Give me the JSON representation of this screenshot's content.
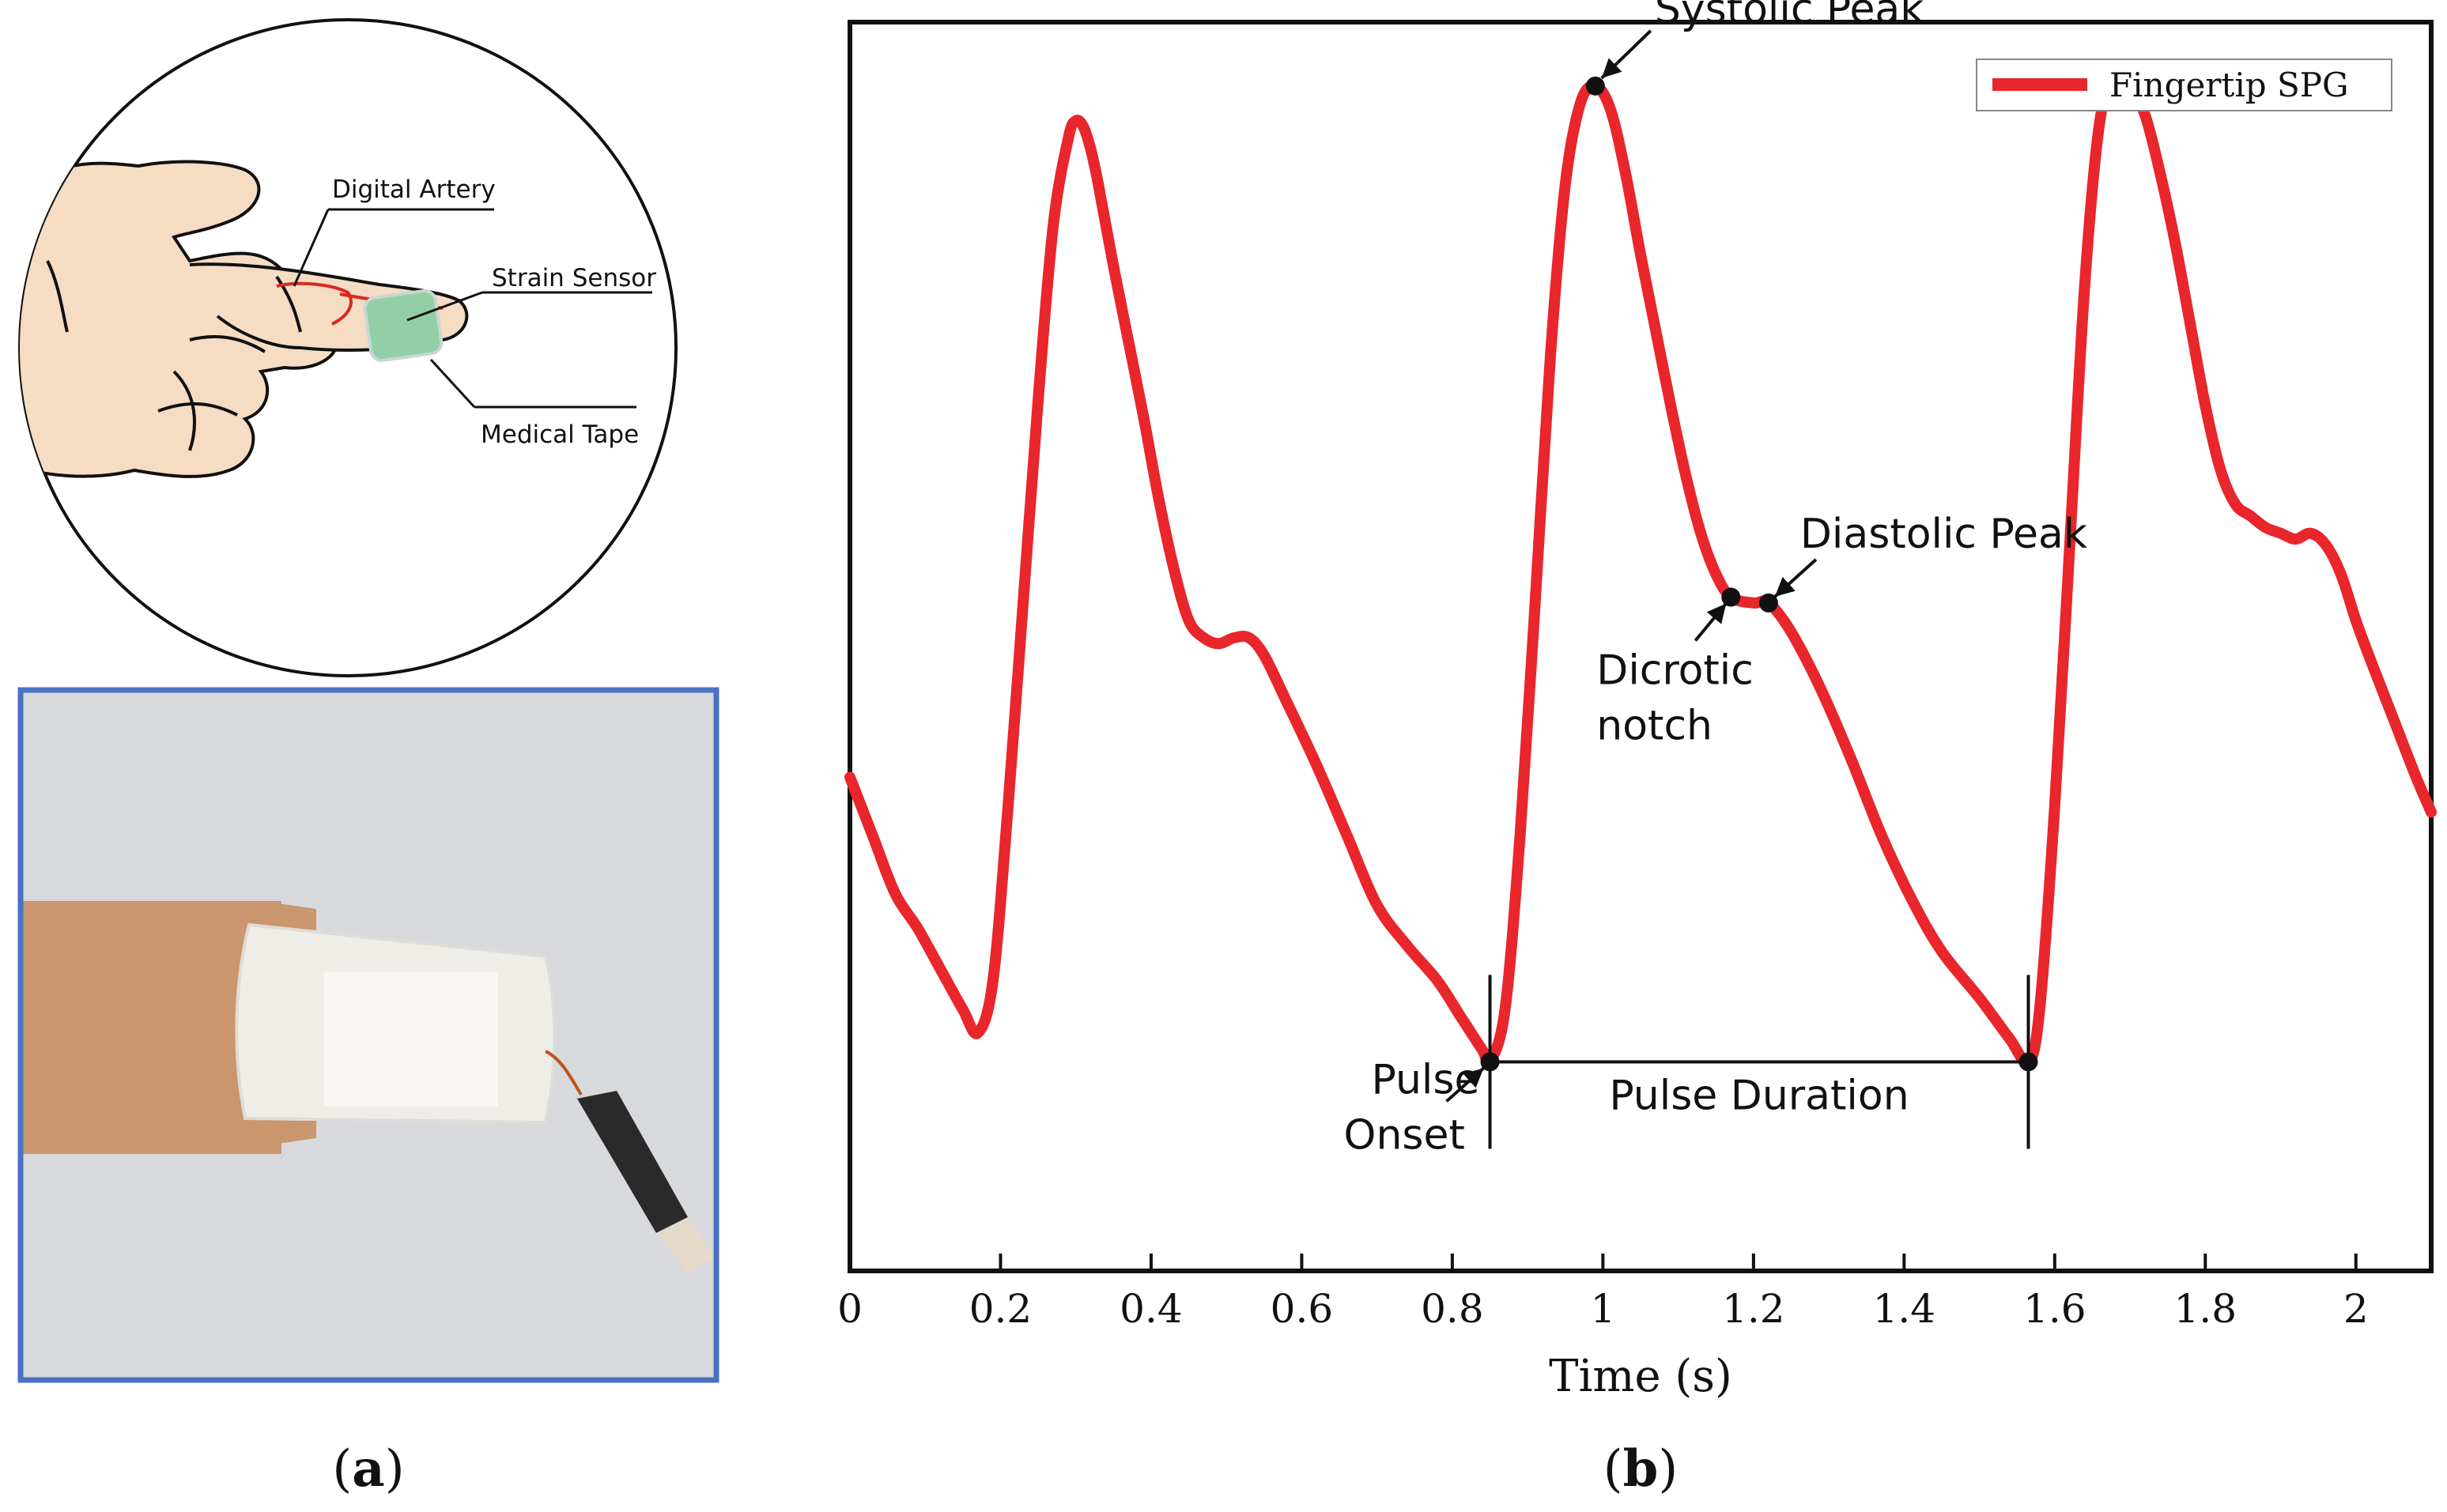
{
  "panel_a": {
    "label": "(a)",
    "illustration_labels": [
      "Digital Artery",
      "Strain Sensor",
      "Medical Tape"
    ],
    "colors": {
      "skin": "#f5dcc3",
      "artery": "#d9291f",
      "sensor": "#93cfa6",
      "photo_frame": "#4a72c4"
    }
  },
  "panel_b": {
    "label": "(b)"
  },
  "chart_data": {
    "type": "line",
    "title": "",
    "xlabel": "Time (s)",
    "ylabel": "",
    "xlim": [
      0,
      2.1
    ],
    "ylim": [
      -1.15,
      1.0
    ],
    "x_ticks": [
      0,
      0.2,
      0.4,
      0.6,
      0.8,
      1,
      1.2,
      1.4,
      1.6,
      1.8,
      2
    ],
    "x_tick_labels": [
      "0",
      "0.2",
      "0.4",
      "0.6",
      "0.8",
      "1",
      "1.2",
      "1.4",
      "1.6",
      "1.8",
      "2"
    ],
    "legend": {
      "position": "top-right",
      "entries": [
        "Fingertip SPG"
      ]
    },
    "series": [
      {
        "name": "Fingertip SPG",
        "color": "#e8262b",
        "x": [
          0,
          0.03,
          0.06,
          0.09,
          0.12,
          0.15,
          0.17,
          0.19,
          0.21,
          0.23,
          0.25,
          0.27,
          0.29,
          0.3,
          0.31,
          0.32,
          0.33,
          0.35,
          0.37,
          0.39,
          0.41,
          0.43,
          0.45,
          0.47,
          0.49,
          0.51,
          0.53,
          0.55,
          0.58,
          0.62,
          0.66,
          0.7,
          0.74,
          0.78,
          0.81,
          0.84,
          0.85,
          0.87,
          0.89,
          0.91,
          0.93,
          0.95,
          0.97,
          0.99,
          1.01,
          1.03,
          1.05,
          1.07,
          1.09,
          1.11,
          1.13,
          1.15,
          1.17,
          1.2,
          1.22,
          1.25,
          1.29,
          1.33,
          1.37,
          1.41,
          1.45,
          1.5,
          1.54,
          1.565,
          1.58,
          1.6,
          1.62,
          1.64,
          1.66,
          1.68,
          1.7,
          1.72,
          1.74,
          1.76,
          1.78,
          1.8,
          1.82,
          1.84,
          1.86,
          1.88,
          1.9,
          1.92,
          1.94,
          1.96,
          1.98,
          2.0,
          2.02,
          2.05,
          2.08,
          2.1
        ],
        "y": [
          -0.3,
          -0.4,
          -0.5,
          -0.56,
          -0.63,
          -0.7,
          -0.74,
          -0.65,
          -0.35,
          0.0,
          0.35,
          0.65,
          0.8,
          0.83,
          0.82,
          0.78,
          0.72,
          0.58,
          0.45,
          0.32,
          0.18,
          0.06,
          -0.03,
          -0.06,
          -0.07,
          -0.06,
          -0.06,
          -0.09,
          -0.17,
          -0.28,
          -0.4,
          -0.52,
          -0.59,
          -0.65,
          -0.71,
          -0.77,
          -0.79,
          -0.7,
          -0.4,
          0.0,
          0.42,
          0.72,
          0.86,
          0.89,
          0.85,
          0.74,
          0.6,
          0.47,
          0.34,
          0.22,
          0.12,
          0.05,
          0.01,
          0.0,
          0.0,
          -0.05,
          -0.15,
          -0.27,
          -0.4,
          -0.51,
          -0.6,
          -0.68,
          -0.75,
          -0.79,
          -0.7,
          -0.35,
          0.1,
          0.55,
          0.83,
          0.9,
          0.89,
          0.84,
          0.74,
          0.62,
          0.48,
          0.34,
          0.23,
          0.17,
          0.15,
          0.13,
          0.12,
          0.11,
          0.12,
          0.1,
          0.05,
          -0.03,
          -0.1,
          -0.2,
          -0.3,
          -0.36
        ]
      }
    ],
    "annotations": [
      {
        "text": "Systolic Peak",
        "x": 0.99,
        "y": 0.89
      },
      {
        "text": "Diastolic Peak",
        "x": 1.22,
        "y": 0.0
      },
      {
        "text_lines": [
          "Dicrotic",
          "notch"
        ],
        "x": 1.17,
        "y": 0.01
      },
      {
        "text_lines": [
          "Pulse",
          "Onset"
        ],
        "x": 0.85,
        "y": -0.79
      },
      {
        "text": "Pulse Duration",
        "from_x": 0.85,
        "to_x": 1.565,
        "y": -0.79
      }
    ]
  }
}
